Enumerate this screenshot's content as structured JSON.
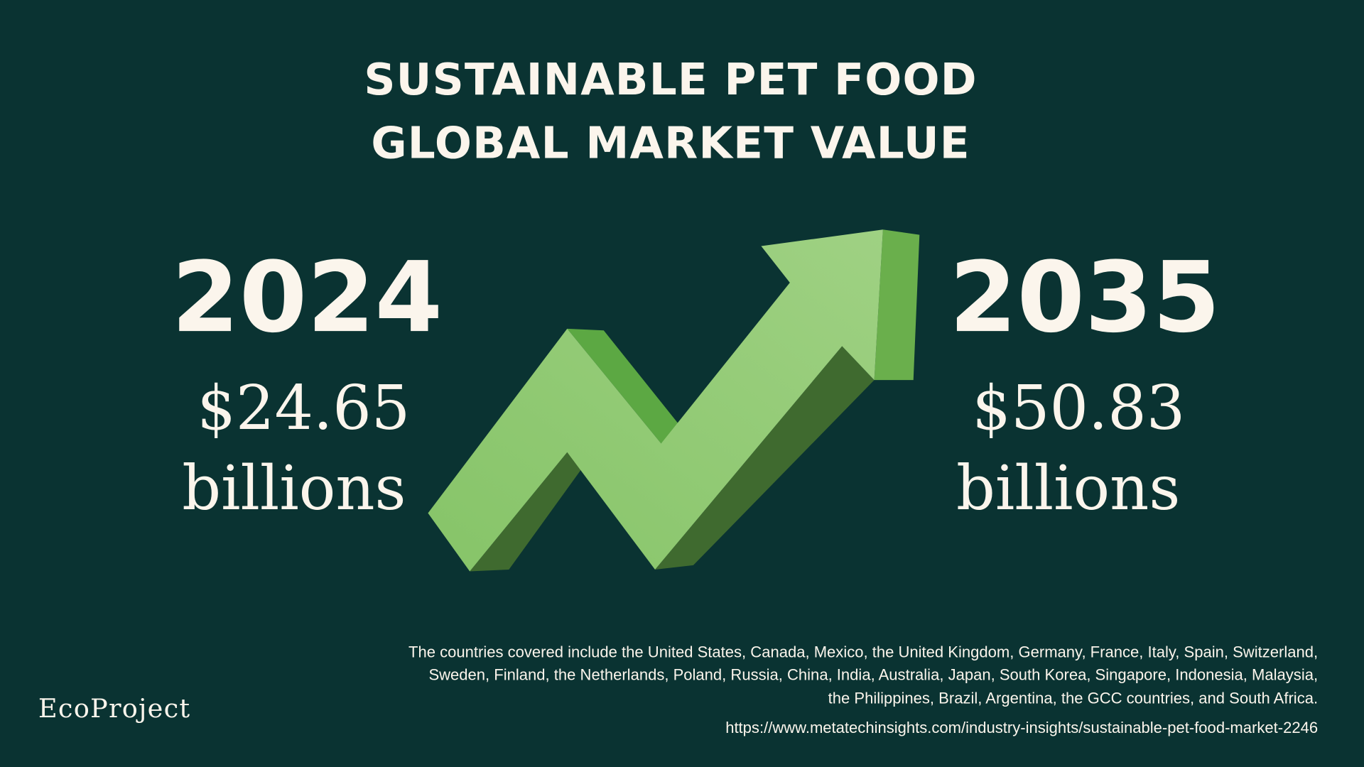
{
  "header": {
    "title_lines": [
      "SUSTAINABLE PET FOOD",
      "GLOBAL MARKET VALUE"
    ]
  },
  "stats": [
    {
      "year": "2024",
      "value": "$24.65",
      "unit": "billions"
    },
    {
      "year": "2035",
      "value": "$50.83",
      "unit": "billions"
    }
  ],
  "footer": {
    "note_lines": [
      "The countries covered include the United States, Canada, Mexico, the United Kingdom, Germany, France, Italy, Spain, Switzerland,",
      "Sweden, Finland, the Netherlands, Poland, Russia, China, India, Australia, Japan, South Korea, Singapore, Indonesia, Malaysia,",
      "the Philippines, Brazil, Argentina, the GCC countries, and South Africa."
    ],
    "source_url": "https://www.metatechinsights.com/industry-insights/sustainable-pet-food-market-2246",
    "brand": "EcoProject"
  }
}
